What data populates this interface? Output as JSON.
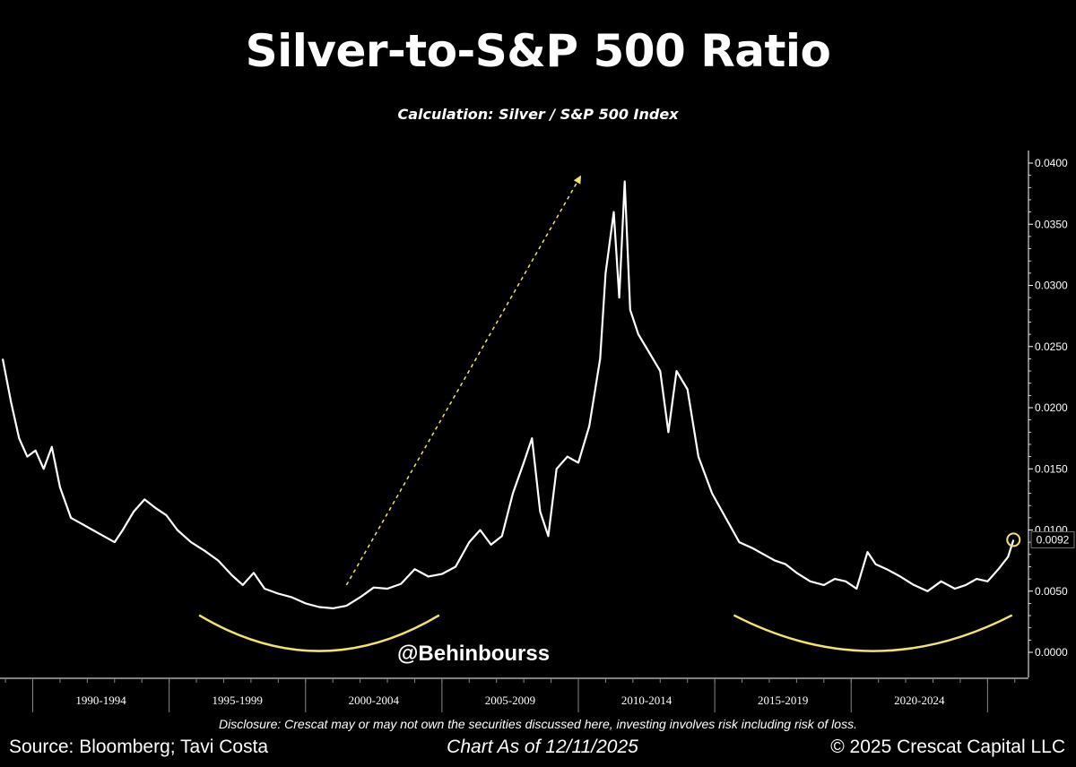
{
  "header": {
    "title": "Silver-to-S&P 500 Ratio",
    "subtitle": "Calculation: Silver / S&P 500 Index"
  },
  "watermark": "@Behinbourss",
  "footer": {
    "disclosure": "Disclosure: Crescat may or may not own the securities discussed here, investing involves risk including risk of loss.",
    "source": "Source: Bloomberg; Tavi Costa",
    "as_of": "Chart As of 12/11/2025",
    "copyright": "© 2025 Crescat Capital LLC"
  },
  "colors": {
    "background": "#000000",
    "line": "#ffffff",
    "highlight": "#f2e36a"
  },
  "chart_data": {
    "type": "line",
    "title": "Silver-to-S&P 500 Ratio",
    "xlabel": "",
    "ylabel": "",
    "x_ticks": [
      "1990-1994",
      "1995-1999",
      "2000-2004",
      "2005-2009",
      "2010-2014",
      "2015-2019",
      "2020-2024"
    ],
    "y_ticks": [
      "0.0000",
      "0.0050",
      "0.0100",
      "0.0150",
      "0.0200",
      "0.0250",
      "0.0300",
      "0.0350",
      "0.0400"
    ],
    "ylim": [
      0,
      0.04
    ],
    "xlim": [
      1988.8,
      2026.5
    ],
    "grid": false,
    "y_axis_side": "right",
    "last_value_label": "0.0092",
    "series": [
      {
        "values": [
          [
            1988.9,
            0.024
          ],
          [
            1989.2,
            0.0205
          ],
          [
            1989.5,
            0.0175
          ],
          [
            1989.8,
            0.016
          ],
          [
            1990.1,
            0.0165
          ],
          [
            1990.4,
            0.015
          ],
          [
            1990.7,
            0.0168
          ],
          [
            1991.0,
            0.0135
          ],
          [
            1991.4,
            0.011
          ],
          [
            1991.8,
            0.0105
          ],
          [
            1992.2,
            0.01
          ],
          [
            1992.6,
            0.0095
          ],
          [
            1993.0,
            0.009
          ],
          [
            1993.3,
            0.01
          ],
          [
            1993.7,
            0.0115
          ],
          [
            1994.1,
            0.0125
          ],
          [
            1994.5,
            0.0118
          ],
          [
            1994.9,
            0.0112
          ],
          [
            1995.3,
            0.01
          ],
          [
            1995.8,
            0.009
          ],
          [
            1996.3,
            0.0083
          ],
          [
            1996.8,
            0.0075
          ],
          [
            1997.3,
            0.0063
          ],
          [
            1997.7,
            0.0055
          ],
          [
            1998.1,
            0.0065
          ],
          [
            1998.5,
            0.0052
          ],
          [
            1999.0,
            0.0048
          ],
          [
            1999.5,
            0.0045
          ],
          [
            2000.0,
            0.004
          ],
          [
            2000.5,
            0.0037
          ],
          [
            2001.0,
            0.0036
          ],
          [
            2001.5,
            0.0038
          ],
          [
            2002.0,
            0.0045
          ],
          [
            2002.5,
            0.0053
          ],
          [
            2003.0,
            0.0052
          ],
          [
            2003.5,
            0.0056
          ],
          [
            2004.0,
            0.0068
          ],
          [
            2004.5,
            0.0062
          ],
          [
            2005.0,
            0.0064
          ],
          [
            2005.5,
            0.007
          ],
          [
            2006.0,
            0.009
          ],
          [
            2006.4,
            0.01
          ],
          [
            2006.8,
            0.0088
          ],
          [
            2007.2,
            0.0095
          ],
          [
            2007.6,
            0.013
          ],
          [
            2008.0,
            0.0155
          ],
          [
            2008.3,
            0.0175
          ],
          [
            2008.6,
            0.0115
          ],
          [
            2008.9,
            0.0095
          ],
          [
            2009.2,
            0.015
          ],
          [
            2009.6,
            0.016
          ],
          [
            2010.0,
            0.0155
          ],
          [
            2010.4,
            0.0185
          ],
          [
            2010.8,
            0.024
          ],
          [
            2011.0,
            0.031
          ],
          [
            2011.3,
            0.036
          ],
          [
            2011.5,
            0.029
          ],
          [
            2011.7,
            0.0385
          ],
          [
            2011.9,
            0.028
          ],
          [
            2012.2,
            0.026
          ],
          [
            2012.6,
            0.0245
          ],
          [
            2013.0,
            0.023
          ],
          [
            2013.3,
            0.018
          ],
          [
            2013.6,
            0.023
          ],
          [
            2014.0,
            0.0215
          ],
          [
            2014.4,
            0.016
          ],
          [
            2014.9,
            0.013
          ],
          [
            2015.4,
            0.011
          ],
          [
            2015.9,
            0.009
          ],
          [
            2016.4,
            0.0085
          ],
          [
            2016.8,
            0.008
          ],
          [
            2017.2,
            0.0075
          ],
          [
            2017.6,
            0.0072
          ],
          [
            2018.0,
            0.0065
          ],
          [
            2018.5,
            0.0058
          ],
          [
            2019.0,
            0.0055
          ],
          [
            2019.4,
            0.006
          ],
          [
            2019.8,
            0.0058
          ],
          [
            2020.2,
            0.0052
          ],
          [
            2020.6,
            0.0082
          ],
          [
            2020.9,
            0.0072
          ],
          [
            2021.3,
            0.0068
          ],
          [
            2021.8,
            0.0062
          ],
          [
            2022.3,
            0.0055
          ],
          [
            2022.8,
            0.005
          ],
          [
            2023.3,
            0.0058
          ],
          [
            2023.8,
            0.0052
          ],
          [
            2024.2,
            0.0055
          ],
          [
            2024.6,
            0.006
          ],
          [
            2025.0,
            0.0058
          ],
          [
            2025.4,
            0.0068
          ],
          [
            2025.75,
            0.0078
          ],
          [
            2025.95,
            0.0092
          ]
        ]
      }
    ],
    "annotations": [
      {
        "type": "dashed-arrow",
        "from": [
          2001.5,
          0.0055
        ],
        "to": [
          2010.1,
          0.039
        ]
      },
      {
        "type": "arc",
        "x_range": [
          1996.1,
          2004.9
        ]
      },
      {
        "type": "arc",
        "x_range": [
          2015.7,
          2025.9
        ]
      },
      {
        "type": "circle",
        "at": [
          2025.95,
          0.0092
        ]
      }
    ]
  }
}
